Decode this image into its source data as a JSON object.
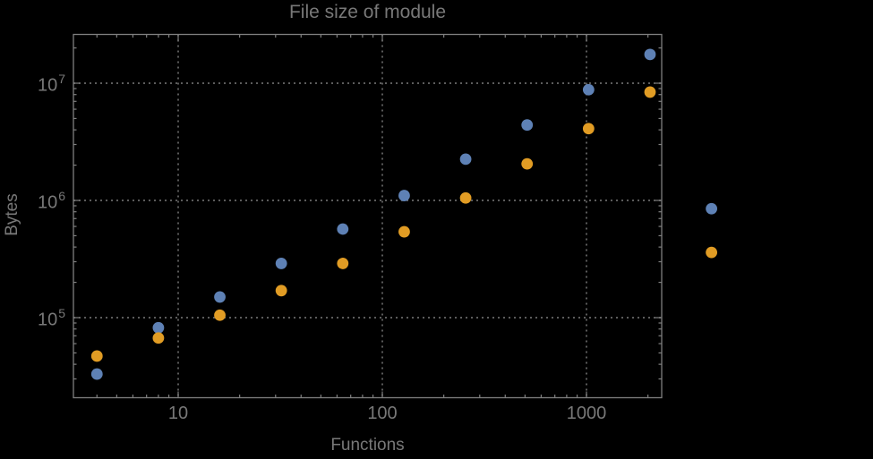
{
  "chart_data": {
    "type": "scatter",
    "title": "File size of module",
    "xlabel": "Functions",
    "ylabel": "Bytes",
    "x_scale": "log",
    "y_scale": "log",
    "x": [
      4,
      8,
      16,
      32,
      64,
      128,
      256,
      512,
      1024,
      2048,
      4096
    ],
    "series": [
      {
        "name": "blue",
        "color": "#5e81b5",
        "values": [
          33000,
          82000,
          150000,
          290000,
          570000,
          1100000,
          2250000,
          4400000,
          8800000,
          17600000,
          850000
        ]
      },
      {
        "name": "orange",
        "color": "#e19c24",
        "values": [
          47000,
          67000,
          105000,
          170000,
          290000,
          540000,
          1050000,
          2050000,
          4100000,
          8400000,
          360000
        ]
      }
    ],
    "x_ticks": [
      {
        "label": "10",
        "value": 10
      },
      {
        "label": "100",
        "value": 100
      },
      {
        "label": "1000",
        "value": 1000
      }
    ],
    "y_ticks": [
      {
        "base": "10",
        "exp": "7",
        "value": 10000000
      },
      {
        "base": "10",
        "exp": "6",
        "value": 1000000
      },
      {
        "base": "10",
        "exp": "5",
        "value": 100000
      }
    ],
    "x_gridlines": [
      10,
      100,
      1000
    ],
    "y_gridlines": [
      100000,
      1000000,
      10000000
    ],
    "xlim": [
      3.1,
      2330
    ],
    "ylim": [
      21000,
      26000000
    ],
    "grid_style": "dotted",
    "legend": "none"
  },
  "colors": {
    "background": "#000000",
    "frame": "#7f7f7f",
    "gridline": "#6a6a6a",
    "text": "#787878",
    "series_blue": "#5e81b5",
    "series_orange": "#e19c24"
  }
}
